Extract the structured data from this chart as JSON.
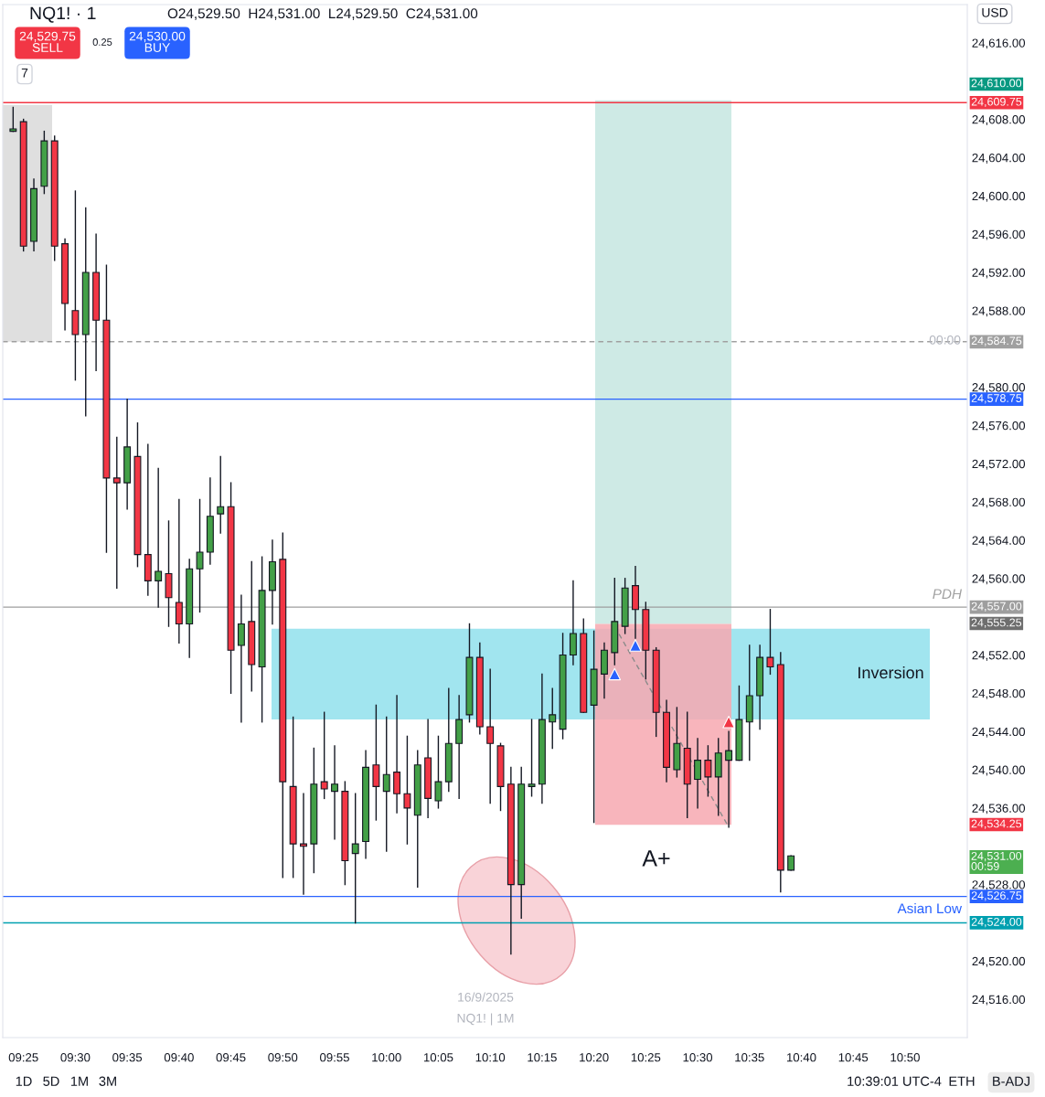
{
  "chart_data": {
    "type": "candlestick",
    "colors": [
      "#43a047",
      "#f23645",
      "#43a047",
      "#43a047",
      "#f23645",
      "#f23645",
      "#f23645",
      "#43a047",
      "#f23645",
      "#f23645",
      "#f23645",
      "#43a047",
      "#f23645",
      "#f23645",
      "#43a047",
      "#f23645",
      "#f23645",
      "#43a047",
      "#43a047",
      "#43a047",
      "#43a047",
      "#f23645",
      "#43a047",
      "#f23645",
      "#43a047",
      "#43a047",
      "#f23645",
      "#f23645",
      "#f23645",
      "#43a047",
      "#f23645",
      "#43a047",
      "#f23645",
      "#43a047",
      "#43a047",
      "#f23645",
      "#43a047",
      "#f23645",
      "#f23645",
      "#43a047",
      "#f23645",
      "#43a047",
      "#43a047",
      "#43a047",
      "#43a047",
      "#f23645",
      "#f23645",
      "#f23645",
      "#f23645",
      "#43a047",
      "#43a047",
      "#43a047",
      "#43a047",
      "#43a047",
      "#43a047",
      "#f23645",
      "#43a047",
      "#43a047",
      "#43a047",
      "#43a047",
      "#f23645",
      "#f23645",
      "#f23645",
      "#f23645",
      "#43a047",
      "#f23645",
      "#43a047",
      "#f23645",
      "#43a047",
      "#43a047",
      "#43a047",
      "#43a047",
      "#43a047",
      "#f23645",
      "#f23645",
      "#43a047"
    ],
    "x": [
      "2025-09-16T09:24",
      "2025-09-16T09:25",
      "2025-09-16T09:26",
      "2025-09-16T09:27",
      "2025-09-16T09:28",
      "2025-09-16T09:29",
      "2025-09-16T09:30",
      "2025-09-16T09:31",
      "2025-09-16T09:32",
      "2025-09-16T09:33",
      "2025-09-16T09:34",
      "2025-09-16T09:35",
      "2025-09-16T09:36",
      "2025-09-16T09:37",
      "2025-09-16T09:38",
      "2025-09-16T09:39",
      "2025-09-16T09:40",
      "2025-09-16T09:41",
      "2025-09-16T09:42",
      "2025-09-16T09:43",
      "2025-09-16T09:44",
      "2025-09-16T09:45",
      "2025-09-16T09:46",
      "2025-09-16T09:47",
      "2025-09-16T09:48",
      "2025-09-16T09:49",
      "2025-09-16T09:50",
      "2025-09-16T09:51",
      "2025-09-16T09:52",
      "2025-09-16T09:53",
      "2025-09-16T09:54",
      "2025-09-16T09:55",
      "2025-09-16T09:56",
      "2025-09-16T09:57",
      "2025-09-16T09:58",
      "2025-09-16T09:59",
      "2025-09-16T10:00",
      "2025-09-16T10:01",
      "2025-09-16T10:02",
      "2025-09-16T10:03",
      "2025-09-16T10:04",
      "2025-09-16T10:05",
      "2025-09-16T10:06",
      "2025-09-16T10:07",
      "2025-09-16T10:08",
      "2025-09-16T10:09",
      "2025-09-16T10:10",
      "2025-09-16T10:11",
      "2025-09-16T10:12",
      "2025-09-16T10:13",
      "2025-09-16T10:14",
      "2025-09-16T10:15",
      "2025-09-16T10:16",
      "2025-09-16T10:17",
      "2025-09-16T10:18",
      "2025-09-16T10:19",
      "2025-09-16T10:20",
      "2025-09-16T10:21",
      "2025-09-16T10:22",
      "2025-09-16T10:23",
      "2025-09-16T10:24",
      "2025-09-16T10:25",
      "2025-09-16T10:26",
      "2025-09-16T10:27",
      "2025-09-16T10:28",
      "2025-09-16T10:29",
      "2025-09-16T10:30",
      "2025-09-16T10:31",
      "2025-09-16T10:32",
      "2025-09-16T10:33",
      "2025-09-16T10:34",
      "2025-09-16T10:35",
      "2025-09-16T10:36",
      "2025-09-16T10:37",
      "2025-09-16T10:38",
      "2025-09-16T10:39"
    ],
    "ohlc": [
      [
        24606.75,
        24609.25,
        24606.75,
        24607.0
      ],
      [
        24607.75,
        24608.0,
        24594.25,
        24594.75
      ],
      [
        24595.25,
        24601.75,
        24594.25,
        24600.75
      ],
      [
        24601.0,
        24606.75,
        24600.25,
        24605.75
      ],
      [
        24605.75,
        24606.25,
        24593.25,
        24594.75
      ],
      [
        24595.0,
        24595.5,
        24586.0,
        24588.75
      ],
      [
        24588.0,
        24600.5,
        24580.75,
        24585.5
      ],
      [
        24585.5,
        24598.75,
        24577.0,
        24592.0
      ],
      [
        24592.0,
        24596.0,
        24581.75,
        24587.0
      ],
      [
        24587.0,
        24592.75,
        24562.75,
        24570.5
      ],
      [
        24570.5,
        24574.75,
        24559.0,
        24570.0
      ],
      [
        24570.0,
        24578.75,
        24567.25,
        24573.75
      ],
      [
        24572.75,
        24576.25,
        24561.25,
        24562.5
      ],
      [
        24562.5,
        24574.0,
        24558.25,
        24559.75
      ],
      [
        24559.75,
        24571.5,
        24557.0,
        24560.75
      ],
      [
        24560.5,
        24566.0,
        24555.0,
        24558.0
      ],
      [
        24557.5,
        24568.25,
        24553.25,
        24555.25
      ],
      [
        24555.25,
        24562.0,
        24551.75,
        24561.0
      ],
      [
        24561.0,
        24568.25,
        24556.5,
        24562.75
      ],
      [
        24562.75,
        24570.5,
        24561.5,
        24566.5
      ],
      [
        24566.75,
        24572.75,
        24564.75,
        24567.5
      ],
      [
        24567.5,
        24570.0,
        24548.0,
        24552.5
      ],
      [
        24553.0,
        24558.25,
        24545.0,
        24555.25
      ],
      [
        24555.5,
        24561.75,
        24548.25,
        24551.0
      ],
      [
        24550.75,
        24562.25,
        24545.0,
        24558.75
      ],
      [
        24558.75,
        24564.0,
        24555.25,
        24561.75
      ],
      [
        24562.0,
        24564.75,
        24528.75,
        24538.75
      ],
      [
        24538.25,
        24545.5,
        24528.75,
        24532.25
      ],
      [
        24532.25,
        24537.5,
        24527.0,
        24532.0
      ],
      [
        24532.25,
        24542.25,
        24529.25,
        24538.5
      ],
      [
        24538.75,
        24546.0,
        24537.0,
        24538.0
      ],
      [
        24537.75,
        24542.5,
        24532.75,
        24538.5
      ],
      [
        24537.75,
        24538.75,
        24528.0,
        24530.5
      ],
      [
        24531.25,
        24537.5,
        24524.0,
        24532.25
      ],
      [
        24532.5,
        24542.0,
        24530.75,
        24540.25
      ],
      [
        24540.5,
        24546.75,
        24534.75,
        24538.25
      ],
      [
        24537.75,
        24545.5,
        24531.5,
        24539.5
      ],
      [
        24539.75,
        24547.75,
        24535.5,
        24537.5
      ],
      [
        24537.5,
        24543.5,
        24532.25,
        24536.0
      ],
      [
        24535.25,
        24542.0,
        24527.75,
        24540.5
      ],
      [
        24541.25,
        24545.25,
        24535.0,
        24537.0
      ],
      [
        24536.75,
        24543.5,
        24536.0,
        24538.75
      ],
      [
        24538.75,
        24548.5,
        24537.75,
        24542.75
      ],
      [
        24542.75,
        24547.75,
        24537.0,
        24545.25
      ],
      [
        24545.75,
        24555.25,
        24545.0,
        24551.75
      ],
      [
        24551.75,
        24553.25,
        24543.75,
        24544.5
      ],
      [
        24544.5,
        24550.5,
        24536.5,
        24542.75
      ],
      [
        24542.5,
        24542.75,
        24535.75,
        24538.25
      ],
      [
        24538.5,
        24540.25,
        24520.75,
        24528.0
      ],
      [
        24528.0,
        24540.25,
        24524.5,
        24538.5
      ],
      [
        24538.25,
        24545.25,
        24537.25,
        24538.5
      ],
      [
        24538.5,
        24550.0,
        24536.5,
        24545.25
      ],
      [
        24545.0,
        24548.5,
        24542.25,
        24545.75
      ],
      [
        24544.25,
        24554.25,
        24543.25,
        24552.0
      ],
      [
        24552.0,
        24559.75,
        24551.0,
        24554.25
      ],
      [
        24554.25,
        24555.75,
        24546.0,
        24546.0
      ],
      [
        24546.75,
        24554.5,
        24534.5,
        24550.5
      ],
      [
        24550.0,
        24553.25,
        24547.5,
        24552.5
      ],
      [
        24552.25,
        24560.0,
        24551.0,
        24555.5
      ],
      [
        24555.0,
        24560.0,
        24554.25,
        24559.0
      ],
      [
        24559.25,
        24561.25,
        24553.75,
        24556.75
      ],
      [
        24556.75,
        24557.5,
        24549.5,
        24552.5
      ],
      [
        24552.5,
        24552.75,
        24543.5,
        24546.0
      ],
      [
        24546.0,
        24547.25,
        24538.75,
        24540.25
      ],
      [
        24540.0,
        24546.5,
        24539.25,
        24542.75
      ],
      [
        24542.25,
        24546.0,
        24535.0,
        24538.5
      ],
      [
        24539.0,
        24543.25,
        24536.0,
        24541.0
      ],
      [
        24541.0,
        24542.5,
        24537.25,
        24539.25
      ],
      [
        24539.25,
        24543.25,
        24535.25,
        24541.75
      ],
      [
        24541.0,
        24544.0,
        24534.0,
        24542.0
      ],
      [
        24541.0,
        24548.75,
        24541.0,
        24545.25
      ],
      [
        24545.0,
        24553.0,
        24541.0,
        24547.75
      ],
      [
        24547.75,
        24553.0,
        24544.25,
        24551.75
      ],
      [
        24551.75,
        24556.75,
        24550.0,
        24550.75
      ],
      [
        24551.0,
        24552.25,
        24527.25,
        24529.5
      ],
      [
        24529.5,
        24531.0,
        24529.5,
        24531.0
      ]
    ],
    "series": [
      {
        "type": "line",
        "line_style": "dashed",
        "color": "#8a8a8a",
        "x": [
          "2025-09-16T10:22",
          "2025-09-16T10:33"
        ],
        "values": [
          24555,
          24534
        ]
      },
      {
        "type": "scatter",
        "marker": "triangle",
        "color": "#2962ff",
        "x": [
          "2025-09-16T10:22",
          "2025-09-16T10:24"
        ],
        "values": [
          24550,
          24553
        ]
      },
      {
        "type": "scatter",
        "marker": "triangle",
        "color": "#f23645",
        "x": [
          "2025-09-16T10:33"
        ],
        "values": [
          24545
        ]
      }
    ],
    "xlim": [
      "2025-09-16T09:23",
      "2025-09-16T10:56"
    ],
    "xticks": [
      {
        "value": "2025-09-16T09:25",
        "label": "09:25"
      },
      {
        "value": "2025-09-16T09:30",
        "label": "09:30"
      },
      {
        "value": "2025-09-16T09:35",
        "label": "09:35"
      },
      {
        "value": "2025-09-16T09:40",
        "label": "09:40"
      },
      {
        "value": "2025-09-16T09:45",
        "label": "09:45"
      },
      {
        "value": "2025-09-16T09:50",
        "label": "09:50"
      },
      {
        "value": "2025-09-16T09:55",
        "label": "09:55"
      },
      {
        "value": "2025-09-16T10:00",
        "label": "10:00"
      },
      {
        "value": "2025-09-16T10:05",
        "label": "10:05"
      },
      {
        "value": "2025-09-16T10:10",
        "label": "10:10"
      },
      {
        "value": "2025-09-16T10:15",
        "label": "10:15"
      },
      {
        "value": "2025-09-16T10:20",
        "label": "10:20"
      },
      {
        "value": "2025-09-16T10:25",
        "label": "10:25"
      },
      {
        "value": "2025-09-16T10:30",
        "label": "10:30"
      },
      {
        "value": "2025-09-16T10:35",
        "label": "10:35"
      },
      {
        "value": "2025-09-16T10:40",
        "label": "10:40"
      },
      {
        "value": "2025-09-16T10:45",
        "label": "10:45"
      },
      {
        "value": "2025-09-16T10:50",
        "label": "10:50"
      }
    ],
    "ylim": [
      24512,
      24620
    ],
    "yticks": [
      {
        "value": 24516,
        "label": "24,516.00"
      },
      {
        "value": 24520,
        "label": "24,520.00"
      },
      {
        "value": 24528,
        "label": "24,528.00"
      },
      {
        "value": 24536,
        "label": "24,536.00"
      },
      {
        "value": 24540,
        "label": "24,540.00"
      },
      {
        "value": 24544,
        "label": "24,544.00"
      },
      {
        "value": 24548,
        "label": "24,548.00"
      },
      {
        "value": 24552,
        "label": "24,552.00"
      },
      {
        "value": 24560,
        "label": "24,560.00"
      },
      {
        "value": 24564,
        "label": "24,564.00"
      },
      {
        "value": 24568,
        "label": "24,568.00"
      },
      {
        "value": 24572,
        "label": "24,572.00"
      },
      {
        "value": 24576,
        "label": "24,576.00"
      },
      {
        "value": 24580,
        "label": "24,580.00"
      },
      {
        "value": 24588,
        "label": "24,588.00"
      },
      {
        "value": 24592,
        "label": "24,592.00"
      },
      {
        "value": 24596,
        "label": "24,596.00"
      },
      {
        "value": 24600,
        "label": "24,600.00"
      },
      {
        "value": 24604,
        "label": "24,604.00"
      },
      {
        "value": 24608,
        "label": "24,608.00"
      },
      {
        "value": 24616,
        "label": "24,616.00"
      }
    ],
    "grid": false,
    "ref_lines": [
      {
        "axis": "y",
        "value": 24609.75,
        "label": "24,609.75",
        "color": "#f23645",
        "line_style": "solid"
      },
      {
        "axis": "y",
        "value": 24584.75,
        "label": "24,584.75",
        "color": "#a0a0a0",
        "line_style": "dashed"
      },
      {
        "axis": "y",
        "value": 24578.75,
        "label": "24,578.75",
        "color": "#2962ff",
        "line_style": "solid"
      },
      {
        "axis": "y",
        "value": 24557.0,
        "label": "24,557.00",
        "color": "#9e9e9e",
        "line_style": "solid"
      },
      {
        "axis": "y",
        "value": 24526.75,
        "label": "24,526.75",
        "color": "#2962ff",
        "line_style": "solid"
      },
      {
        "axis": "y",
        "value": 24524.0,
        "label": "24,524.00",
        "color": "#00a0b0",
        "line_style": "solid"
      }
    ],
    "bands": [
      {
        "axis": "y",
        "from": 24584.75,
        "to": 24609.5,
        "color": "#d9d9d9"
      },
      {
        "axis": "y",
        "from": 24545.25,
        "to": 24554.75,
        "color": "#91e0ec",
        "label": "Inversion"
      },
      {
        "axis": "y",
        "from": 24555.25,
        "to": 24610.0,
        "color": "#c5e6e0"
      },
      {
        "axis": "y",
        "from": 24534.25,
        "to": 24555.25,
        "color": "#f7a8b0"
      }
    ],
    "annotations": [
      "24,610.00",
      "24,555.25",
      "24,534.25",
      "24,531.00\n00:59",
      "A+",
      "PDH",
      "Asian Low",
      "00:00",
      "NQ1! · 1",
      "O24,529.50  H24,531.00  L24,529.50  C24,531.00",
      "24,529.75\nSELL",
      "0.25",
      "24,530.00\nBUY",
      "7",
      "USD",
      "16/9/2025",
      "NQ1! | 1M",
      "1D",
      "5D",
      "1M",
      "3M",
      "10:39:01 UTC-4",
      "ETH",
      "B-ADJ"
    ]
  }
}
